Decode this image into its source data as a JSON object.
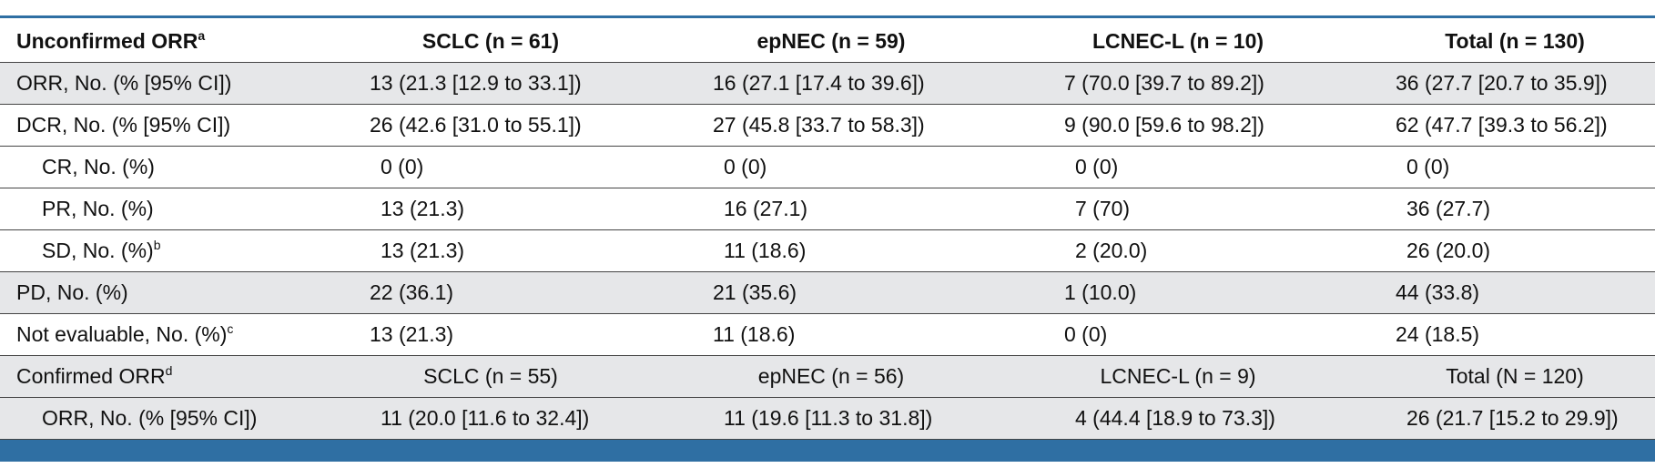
{
  "table": {
    "rows": [
      {
        "label": "Unconfirmed ORR",
        "sup": "a",
        "cells": [
          "SCLC (n = 61)",
          "epNEC (n = 59)",
          "LCNEC-L (n = 10)",
          "Total (n = 130)"
        ]
      },
      {
        "label": "ORR, No. (% [95% CI])",
        "cells": [
          "13 (21.3 [12.9 to 33.1])",
          "16 (27.1 [17.4 to 39.6])",
          "7 (70.0 [39.7 to 89.2])",
          "36 (27.7 [20.7 to 35.9])"
        ]
      },
      {
        "label": "DCR, No. (% [95% CI])",
        "cells": [
          "26 (42.6 [31.0 to 55.1])",
          "27 (45.8 [33.7 to 58.3])",
          "9 (90.0 [59.6 to 98.2])",
          "62 (47.7 [39.3 to 56.2])"
        ]
      },
      {
        "label": "CR, No. (%)",
        "cells": [
          "0 (0)",
          "0 (0)",
          "0 (0)",
          "0 (0)"
        ]
      },
      {
        "label": "PR, No. (%)",
        "cells": [
          "13 (21.3)",
          "16 (27.1)",
          "7 (70)",
          "36 (27.7)"
        ]
      },
      {
        "label": "SD, No. (%)",
        "sup": "b",
        "cells": [
          "13 (21.3)",
          "11 (18.6)",
          "2 (20.0)",
          "26 (20.0)"
        ]
      },
      {
        "label": "PD, No. (%)",
        "cells": [
          "22 (36.1)",
          "21 (35.6)",
          "1 (10.0)",
          "44 (33.8)"
        ]
      },
      {
        "label": "Not evaluable, No. (%)",
        "sup": "c",
        "cells": [
          "13 (21.3)",
          "11 (18.6)",
          "0 (0)",
          "24 (18.5)"
        ]
      },
      {
        "label": "Confirmed ORR",
        "sup": "d",
        "cells": [
          "SCLC (n = 55)",
          "epNEC (n = 56)",
          "LCNEC-L (n = 9)",
          "Total (N = 120)"
        ]
      },
      {
        "label": "ORR, No. (% [95% CI])",
        "cells": [
          "11 (20.0 [11.6 to 32.4])",
          "11 (19.6 [11.3 to 31.8])",
          "4 (44.4 [18.9 to 73.3])",
          "26 (21.7 [15.2 to 29.9])"
        ]
      }
    ]
  }
}
